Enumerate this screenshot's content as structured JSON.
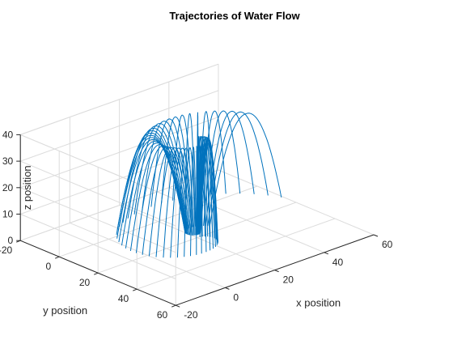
{
  "chart_data": {
    "type": "line",
    "title": "Trajectories of Water Flow",
    "xlabel": "x position",
    "ylabel": "y position",
    "zlabel": "z position",
    "xlim": [
      -20,
      60
    ],
    "ylim": [
      -20,
      60
    ],
    "zlim": [
      0,
      40
    ],
    "xticks": [
      "-20",
      "0",
      "20",
      "40",
      "60"
    ],
    "yticks": [
      "-20",
      "0",
      "20",
      "40",
      "60"
    ],
    "zticks": [
      "0",
      "10",
      "20",
      "30",
      "40"
    ],
    "grid": true,
    "series_color": "#0072BD",
    "trajectories": {
      "count": 50,
      "note_free": true,
      "launch_radius_start": 1,
      "launch_radius_end": 40,
      "center": [
        20,
        20
      ],
      "apex_height": 40,
      "start_height": 0
    }
  }
}
